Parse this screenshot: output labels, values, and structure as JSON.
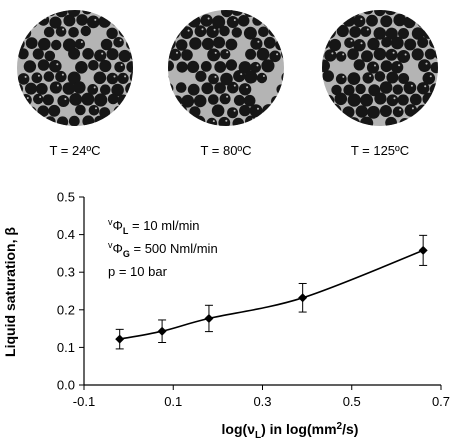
{
  "micrographs": [
    {
      "label": "T = 24ºC"
    },
    {
      "label": "T = 80ºC"
    },
    {
      "label": "T = 125ºC"
    }
  ],
  "colors": {
    "disc_bg": "#b4b4b4",
    "particle": "#161616",
    "line": "#000000"
  },
  "chart_data": {
    "type": "line",
    "xlabel_main": "log(ν",
    "xlabel_sub": "L",
    "xlabel_rest": ")  in log(mm",
    "xlabel_sup": "2",
    "xlabel_end": "/s)",
    "ylabel": "Liquid saturation,  β",
    "xlim": [
      -0.1,
      0.7
    ],
    "ylim": [
      0.0,
      0.5
    ],
    "xticks": [
      "-0.1",
      "0.1",
      "0.3",
      "0.5",
      "0.7"
    ],
    "yticks": [
      "0.0",
      "0.1",
      "0.2",
      "0.3",
      "0.4",
      "0.5"
    ],
    "xtick_values": [
      -0.1,
      0.1,
      0.3,
      0.5,
      0.7
    ],
    "ytick_values": [
      0.0,
      0.1,
      0.2,
      0.3,
      0.4,
      0.5
    ],
    "grid": false,
    "series": [
      {
        "x": [
          -0.02,
          0.075,
          0.18,
          0.39,
          0.66
        ],
        "y": [
          0.122,
          0.143,
          0.177,
          0.232,
          0.358
        ],
        "err": [
          0.026,
          0.03,
          0.035,
          0.038,
          0.04
        ]
      }
    ],
    "annotations": {
      "flow_liquid_sup": "v",
      "flow_liquid_main": "Φ",
      "flow_liquid_sub": "L",
      "flow_liquid_rest": " = 10 ml/min",
      "flow_gas_sup": "v",
      "flow_gas_main": "Φ",
      "flow_gas_sub": "G",
      "flow_gas_rest": " = 500 Nml/min",
      "pressure": "p = 10 bar"
    }
  }
}
